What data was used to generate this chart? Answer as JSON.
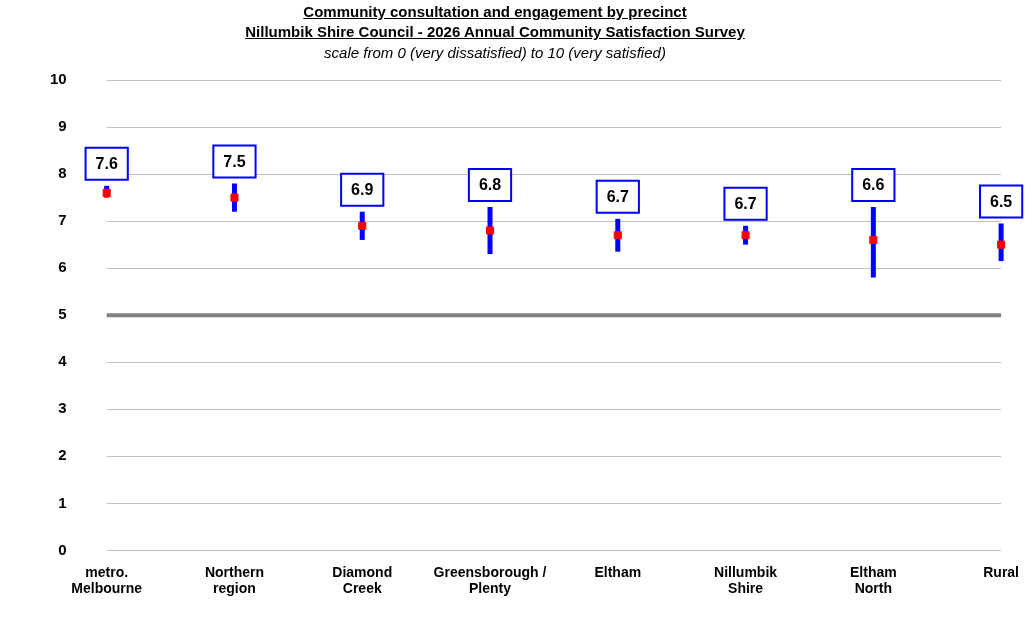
{
  "chart_data": {
    "type": "scatter",
    "title": "Community consultation and engagement by precinct\nNillumbik Shire Council - 2026 Annual Community Satisfaction Survey",
    "subtitle": "scale from 0 (very dissatisfied) to 10 (very satisfied)",
    "categories": [
      "metro. Melbourne",
      "Northern region",
      "Diamond Creek",
      "Greensborough / Plenty",
      "Eltham",
      "Nillumbik Shire",
      "Eltham North",
      "Rural"
    ],
    "series": [
      {
        "color": "#ff0000",
        "values": [
          7.6,
          7.5,
          6.9,
          6.8,
          6.7,
          6.7,
          6.6,
          6.5
        ],
        "errors": [
          [
            7.5,
            7.75
          ],
          [
            7.2,
            7.8
          ],
          [
            6.6,
            7.2
          ],
          [
            6.3,
            7.3
          ],
          [
            6.35,
            7.05
          ],
          [
            6.5,
            6.9
          ],
          [
            5.8,
            7.3
          ],
          [
            6.15,
            6.95
          ]
        ]
      }
    ],
    "ylim": [
      0,
      10
    ],
    "yticks": [
      0,
      1,
      2,
      3,
      4,
      5,
      6,
      7,
      8,
      9,
      10
    ],
    "grid": "y",
    "marker": "square",
    "data_labels": true,
    "ref_lines": [
      {
        "axis": "y",
        "value": 5,
        "color": "#808080"
      }
    ]
  }
}
